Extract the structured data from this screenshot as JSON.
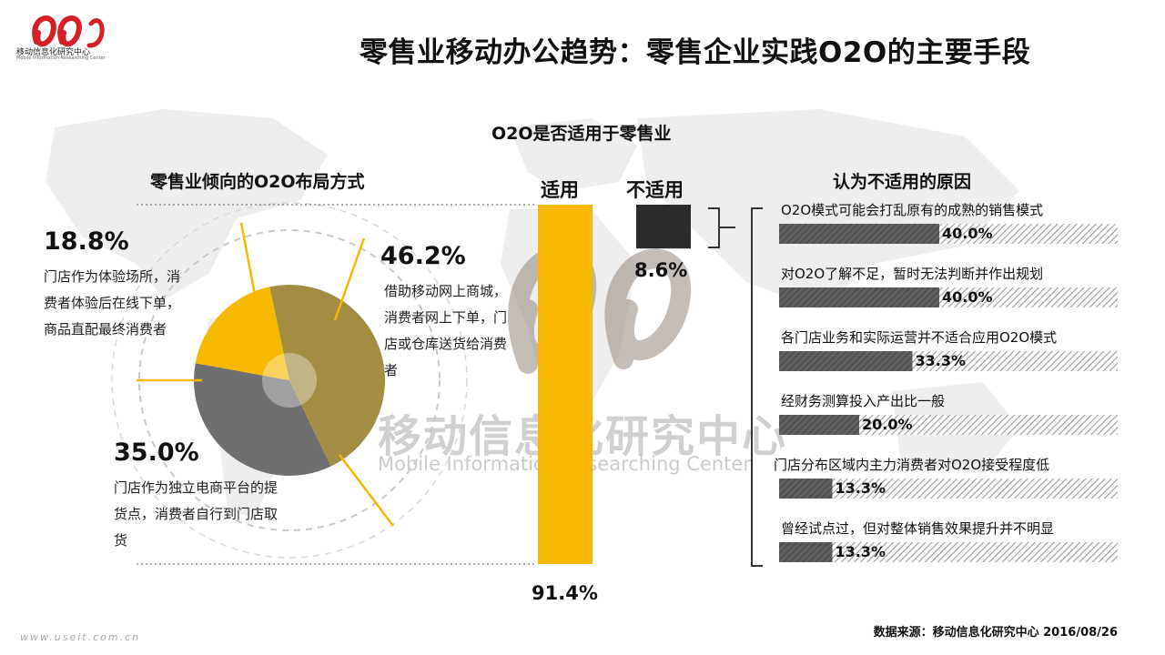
{
  "page": {
    "title": "零售业移动办公趋势：零售企业实践O2O的主要手段",
    "logo_text": "移动信息化研究中心",
    "logo_sub": "Mobile Information Researching Center",
    "watermark_cn": "移动信息化研究中心",
    "watermark_en": "Mobile Information Researching Center",
    "source": "数据来源：移动信息化研究中心 2016/08/26",
    "footer_url": "www.useit.com.cn"
  },
  "colors": {
    "yellow": "#f7b900",
    "olive": "#a28d42",
    "gray": "#6f6f6f",
    "dark": "#2b2b2b"
  },
  "chart_data": [
    {
      "type": "pie",
      "title": "零售业倾向的O2O布局方式",
      "slices": [
        {
          "value": 46.2,
          "label": "46.2%",
          "desc": "借助移动网上商城，消费者网上下单，门店或仓库送货给消费者",
          "color": "#a28d42"
        },
        {
          "value": 35.0,
          "label": "35.0%",
          "desc": "门店作为独立电商平台的提货点，消费者自行到门店取货",
          "color": "#6f6f6f"
        },
        {
          "value": 18.8,
          "label": "18.8%",
          "desc": "门店作为体验场所，消费者体验后在线下单，商品直配最终消费者",
          "color": "#f7b900"
        }
      ]
    },
    {
      "type": "bar",
      "title": "O2O是否适用于零售业",
      "categories": [
        "适用",
        "不适用"
      ],
      "values": [
        91.4,
        8.6
      ],
      "labels": [
        "91.4%",
        "8.6%"
      ],
      "colors": [
        "#f7b900",
        "#2b2b2b"
      ]
    },
    {
      "type": "bar",
      "title": "认为不适用的原因",
      "orientation": "horizontal",
      "categories": [
        "O2O模式可能会打乱原有的成熟的销售模式",
        "对O2O了解不足，暂时无法判断并作出规划",
        "各门店业务和实际运营并不适合应用O2O模式",
        "经财务测算投入产出比一般",
        "门店分布区域内主力消费者对O2O接受程度低",
        "曾经试点过，但对整体销售效果提升并不明显"
      ],
      "values": [
        40.0,
        40.0,
        33.3,
        20.0,
        13.3,
        13.3
      ],
      "labels": [
        "40.0%",
        "40.0%",
        "33.3%",
        "20.0%",
        "13.3%",
        "13.3%"
      ]
    }
  ]
}
